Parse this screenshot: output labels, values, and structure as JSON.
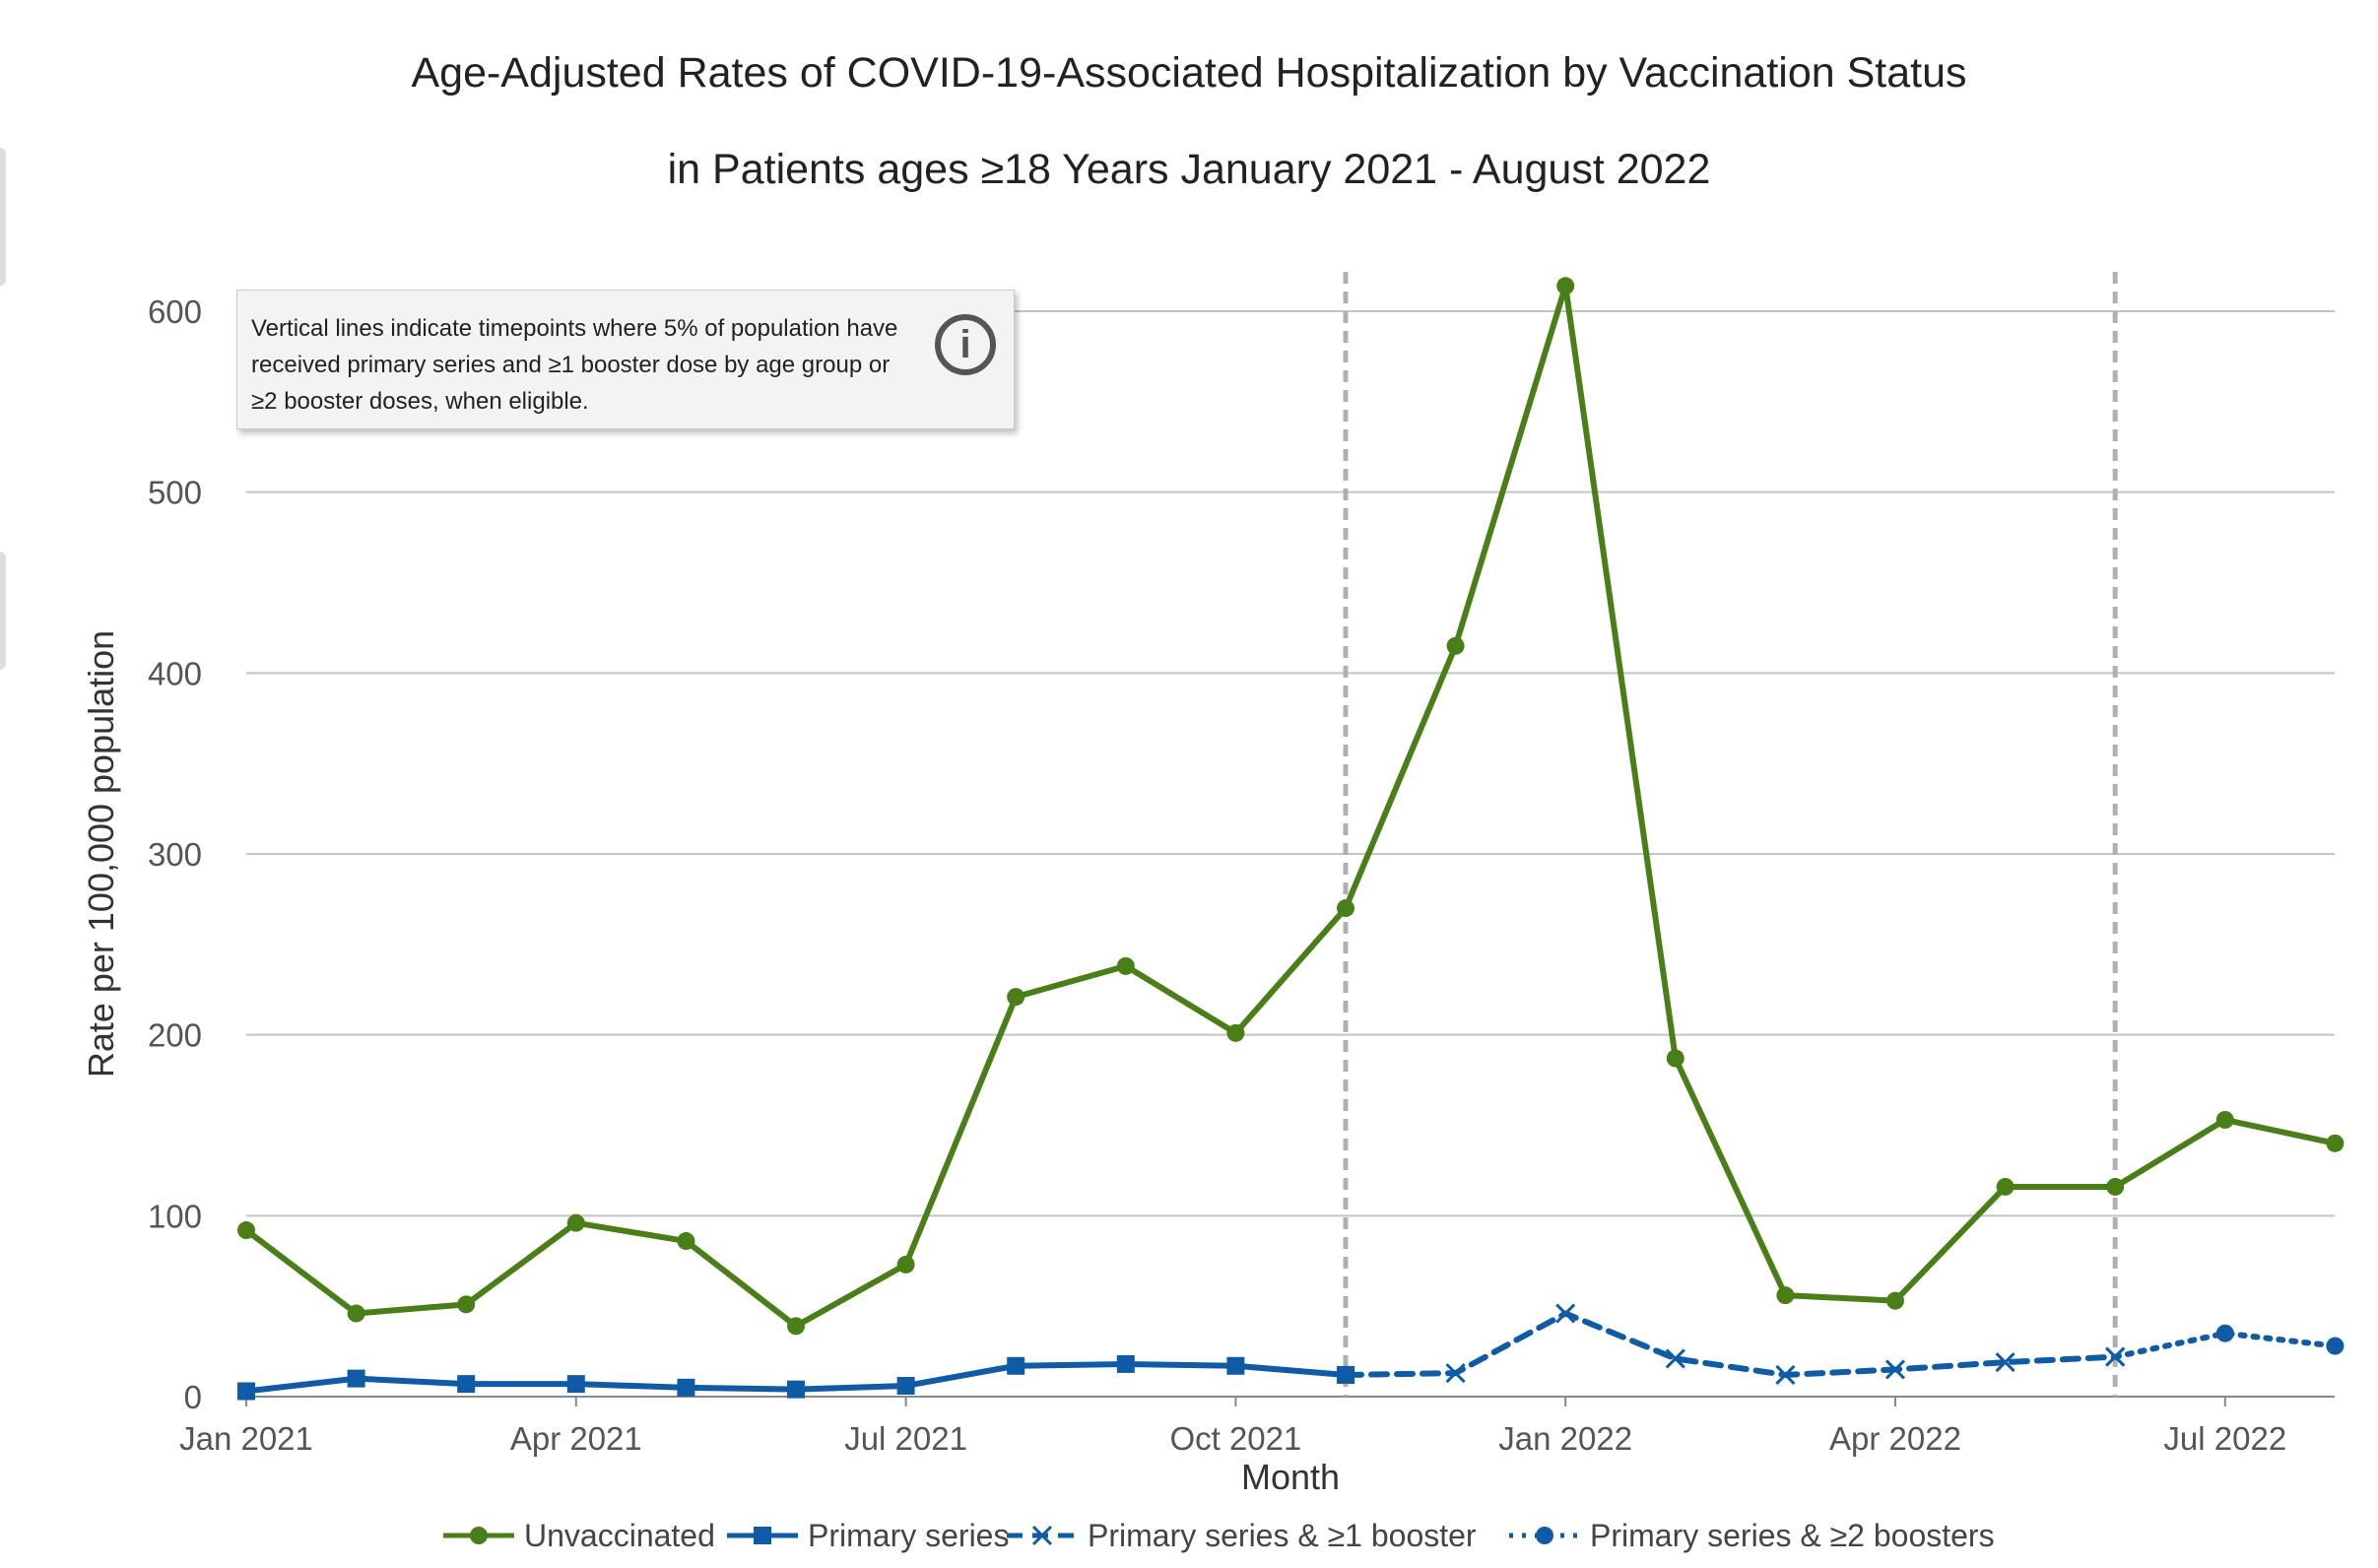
{
  "title_line1": "Age-Adjusted Rates of COVID-19-Associated Hospitalization by Vaccination Status",
  "title_line2": "in Patients ages ≥18 Years January 2021 - August 2022",
  "note": {
    "text": "Vertical lines indicate timepoints where 5% of population have received primary series and ≥1 booster dose by age group or ≥2 booster doses, when eligible.",
    "icon": "info-icon",
    "icon_glyph": "i"
  },
  "chart_data": {
    "type": "line",
    "title": "Age-Adjusted Rates of COVID-19-Associated Hospitalization by Vaccination Status in Patients ages ≥18 Years January 2021 - August 2022",
    "xlabel": "Month",
    "ylabel": "Rate per 100,000 population",
    "ylim": [
      0,
      600
    ],
    "yticks": [
      0,
      100,
      200,
      300,
      400,
      500,
      600
    ],
    "x": [
      "Jan 2021",
      "Feb 2021",
      "Mar 2021",
      "Apr 2021",
      "May 2021",
      "Jun 2021",
      "Jul 2021",
      "Aug 2021",
      "Sep 2021",
      "Oct 2021",
      "Nov 2021",
      "Dec 2021",
      "Jan 2022",
      "Feb 2022",
      "Mar 2022",
      "Apr 2022",
      "May 2022",
      "Jun 2022",
      "Jul 2022",
      "Aug 2022"
    ],
    "xtick_labels": [
      "Jan 2021",
      "Apr 2021",
      "Jul 2021",
      "Oct 2021",
      "Jan 2022",
      "Apr 2022",
      "Jul 2022"
    ],
    "xtick_months": [
      "Jan 2021",
      "Apr 2021",
      "Jul 2021",
      "Oct 2021",
      "Jan 2022",
      "Apr 2022",
      "Jul 2022"
    ],
    "grid": true,
    "vertical_lines": [
      "Nov 2021",
      "Jun 2022"
    ],
    "legend_position": "bottom",
    "series": [
      {
        "name": "Unvaccinated",
        "color": "#4a7f18",
        "marker": "circle",
        "dash": "solid",
        "points": [
          [
            "Jan 2021",
            92
          ],
          [
            "Feb 2021",
            46
          ],
          [
            "Mar 2021",
            51
          ],
          [
            "Apr 2021",
            96
          ],
          [
            "May 2021",
            86
          ],
          [
            "Jun 2021",
            39
          ],
          [
            "Jul 2021",
            73
          ],
          [
            "Aug 2021",
            221
          ],
          [
            "Sep 2021",
            238
          ],
          [
            "Oct 2021",
            201
          ],
          [
            "Nov 2021",
            270
          ],
          [
            "Dec 2021",
            415
          ],
          [
            "Jan 2022",
            614
          ],
          [
            "Feb 2022",
            187
          ],
          [
            "Mar 2022",
            56
          ],
          [
            "Apr 2022",
            53
          ],
          [
            "May 2022",
            116
          ],
          [
            "Jun 2022",
            116
          ],
          [
            "Jul 2022",
            153
          ],
          [
            "Aug 2022",
            140
          ]
        ]
      },
      {
        "name": "Primary series",
        "color": "#0f5ba6",
        "marker": "square",
        "dash": "solid",
        "points": [
          [
            "Jan 2021",
            3
          ],
          [
            "Feb 2021",
            10
          ],
          [
            "Mar 2021",
            7
          ],
          [
            "Apr 2021",
            7
          ],
          [
            "May 2021",
            5
          ],
          [
            "Jun 2021",
            4
          ],
          [
            "Jul 2021",
            6
          ],
          [
            "Aug 2021",
            17
          ],
          [
            "Sep 2021",
            18
          ],
          [
            "Oct 2021",
            17
          ],
          [
            "Nov 2021",
            12
          ]
        ]
      },
      {
        "name": "Primary series & ≥1 booster",
        "color": "#0f5ba6",
        "marker": "x",
        "dash": "dashed",
        "points": [
          [
            "Nov 2021",
            12
          ],
          [
            "Dec 2021",
            13
          ],
          [
            "Jan 2022",
            46
          ],
          [
            "Feb 2022",
            21
          ],
          [
            "Mar 2022",
            12
          ],
          [
            "Apr 2022",
            15
          ],
          [
            "May 2022",
            19
          ],
          [
            "Jun 2022",
            22
          ]
        ]
      },
      {
        "name": "Primary series & ≥2 boosters",
        "color": "#0f5ba6",
        "marker": "circle",
        "dash": "dotted",
        "points": [
          [
            "Jun 2022",
            22
          ],
          [
            "Jul 2022",
            35
          ],
          [
            "Aug 2022",
            28
          ]
        ]
      }
    ]
  }
}
